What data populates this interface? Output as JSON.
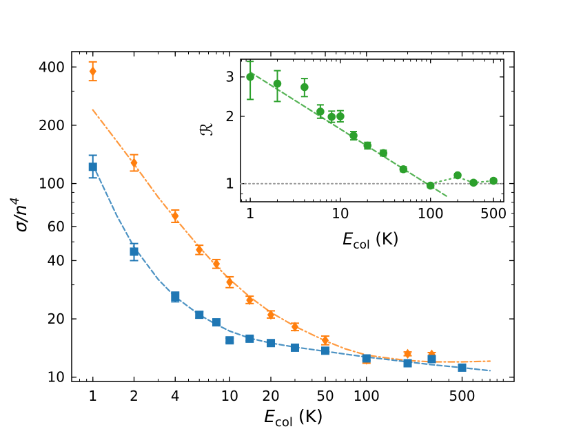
{
  "chart_data": [
    {
      "type": "scatter",
      "xscale": "log",
      "yscale": "log",
      "xlim": [
        0.7,
        1200
      ],
      "ylim": [
        9.5,
        480
      ],
      "xlabel": {
        "main": "E",
        "sub": "col",
        "unit": " (K)"
      },
      "ylabel": {
        "main": "σ/n",
        "sup": "4"
      },
      "xticks": [
        {
          "v": 1,
          "label": "1"
        },
        {
          "v": 2,
          "label": "2"
        },
        {
          "v": 4,
          "label": "4"
        },
        {
          "v": 10,
          "label": "10"
        },
        {
          "v": 20,
          "label": "20"
        },
        {
          "v": 50,
          "label": "50"
        },
        {
          "v": 100,
          "label": "100"
        },
        {
          "v": 500,
          "label": "500"
        }
      ],
      "yticks": [
        {
          "v": 10,
          "label": "10"
        },
        {
          "v": 20,
          "label": "20"
        },
        {
          "v": 40,
          "label": "40"
        },
        {
          "v": 60,
          "label": "60"
        },
        {
          "v": 100,
          "label": "100"
        },
        {
          "v": 200,
          "label": "200"
        },
        {
          "v": 400,
          "label": "400"
        }
      ],
      "series": [
        {
          "name": "orange",
          "color": "#ff7f0e",
          "marker": "diamond",
          "points": [
            {
              "x": 1,
              "y": 380,
              "lo": 340,
              "hi": 425
            },
            {
              "x": 2,
              "y": 128,
              "lo": 116,
              "hi": 141
            },
            {
              "x": 4,
              "y": 68,
              "lo": 63,
              "hi": 73
            },
            {
              "x": 6,
              "y": 45.5,
              "lo": 43,
              "hi": 48
            },
            {
              "x": 8,
              "y": 38.5,
              "lo": 36.5,
              "hi": 40.5
            },
            {
              "x": 10,
              "y": 31,
              "lo": 29,
              "hi": 33
            },
            {
              "x": 14,
              "y": 25,
              "lo": 24,
              "hi": 26.2
            },
            {
              "x": 20,
              "y": 21,
              "lo": 20.2,
              "hi": 22
            },
            {
              "x": 30,
              "y": 18.2,
              "lo": 17.4,
              "hi": 19
            },
            {
              "x": 50,
              "y": 15.5,
              "lo": 14.7,
              "hi": 16.3
            },
            {
              "x": 100,
              "y": 12.3,
              "lo": 11.8,
              "hi": 12.8
            },
            {
              "x": 200,
              "y": 13.2,
              "lo": 12.9,
              "hi": 13.5
            },
            {
              "x": 300,
              "y": 13.1,
              "lo": 12.8,
              "hi": 13.4
            }
          ],
          "fit": {
            "style": "dashdot",
            "points": [
              [
                1,
                240
              ],
              [
                1.5,
                165
              ],
              [
                2,
                126
              ],
              [
                3,
                85
              ],
              [
                4,
                66
              ],
              [
                6,
                47
              ],
              [
                8,
                37.5
              ],
              [
                10,
                32
              ],
              [
                14,
                26
              ],
              [
                20,
                21.6
              ],
              [
                30,
                18.3
              ],
              [
                50,
                15.4
              ],
              [
                70,
                14
              ],
              [
                100,
                13
              ],
              [
                150,
                12.5
              ],
              [
                200,
                12.2
              ],
              [
                300,
                12
              ],
              [
                500,
                12
              ],
              [
                800,
                12.1
              ]
            ]
          }
        },
        {
          "name": "blue",
          "color": "#1f77b4",
          "marker": "square",
          "points": [
            {
              "x": 1,
              "y": 122,
              "lo": 107,
              "hi": 140
            },
            {
              "x": 2,
              "y": 44.5,
              "lo": 40,
              "hi": 49
            },
            {
              "x": 4,
              "y": 26,
              "lo": 24.5,
              "hi": 27.5
            },
            {
              "x": 6,
              "y": 21,
              "lo": 20.2,
              "hi": 21.8
            },
            {
              "x": 8,
              "y": 19.2,
              "lo": 18.6,
              "hi": 19.8
            },
            {
              "x": 10,
              "y": 15.5,
              "lo": 15.1,
              "hi": 15.9
            },
            {
              "x": 14,
              "y": 15.8,
              "lo": 15.4,
              "hi": 16.2
            },
            {
              "x": 20,
              "y": 15,
              "lo": 14.7,
              "hi": 15.3
            },
            {
              "x": 30,
              "y": 14.2,
              "lo": 13.9,
              "hi": 14.5
            },
            {
              "x": 50,
              "y": 13.7,
              "lo": 13.4,
              "hi": 14
            },
            {
              "x": 100,
              "y": 12.5,
              "lo": 12.2,
              "hi": 12.8
            },
            {
              "x": 200,
              "y": 11.8,
              "lo": 11.5,
              "hi": 12.1
            },
            {
              "x": 300,
              "y": 12.4,
              "lo": 12.1,
              "hi": 12.7
            },
            {
              "x": 500,
              "y": 11.2,
              "lo": 10.9,
              "hi": 11.5
            }
          ],
          "fit": {
            "style": "dashed",
            "points": [
              [
                1,
                125
              ],
              [
                1.5,
                68
              ],
              [
                2,
                47
              ],
              [
                3,
                32
              ],
              [
                4,
                26
              ],
              [
                6,
                21
              ],
              [
                8,
                18.7
              ],
              [
                10,
                17.3
              ],
              [
                14,
                15.9
              ],
              [
                20,
                15
              ],
              [
                30,
                14.3
              ],
              [
                50,
                13.6
              ],
              [
                100,
                12.7
              ],
              [
                200,
                12
              ],
              [
                300,
                11.6
              ],
              [
                500,
                11.2
              ],
              [
                800,
                10.8
              ]
            ]
          }
        }
      ]
    },
    {
      "type": "scatter",
      "xscale": "log",
      "yscale": "log",
      "xlim": [
        0.78,
        650
      ],
      "ylim": [
        0.83,
        3.6
      ],
      "xlabel": {
        "main": "E",
        "sub": "col",
        "unit": " (K)"
      },
      "ylabel": {
        "main": "ℛ"
      },
      "xticks": [
        {
          "v": 1,
          "label": "1"
        },
        {
          "v": 10,
          "label": "10"
        },
        {
          "v": 100,
          "label": "100"
        },
        {
          "v": 500,
          "label": "500"
        }
      ],
      "yticks": [
        {
          "v": 1,
          "label": "1"
        },
        {
          "v": 2,
          "label": "2"
        },
        {
          "v": 3,
          "label": "3"
        }
      ],
      "reference_line": {
        "y": 1,
        "color": "#999999",
        "style": "dotted"
      },
      "series": [
        {
          "name": "ratio",
          "color": "#2ca02c",
          "marker": "circle",
          "points": [
            {
              "x": 1,
              "y": 3.0,
              "lo": 2.38,
              "hi": 3.52
            },
            {
              "x": 2,
              "y": 2.8,
              "lo": 2.33,
              "hi": 3.2
            },
            {
              "x": 4,
              "y": 2.7,
              "lo": 2.45,
              "hi": 2.95
            },
            {
              "x": 6,
              "y": 2.1,
              "lo": 1.96,
              "hi": 2.25
            },
            {
              "x": 8,
              "y": 1.99,
              "lo": 1.88,
              "hi": 2.11
            },
            {
              "x": 10,
              "y": 2.0,
              "lo": 1.89,
              "hi": 2.12
            },
            {
              "x": 14,
              "y": 1.64,
              "lo": 1.57,
              "hi": 1.71
            },
            {
              "x": 20,
              "y": 1.48,
              "lo": 1.43,
              "hi": 1.53
            },
            {
              "x": 30,
              "y": 1.37,
              "lo": 1.33,
              "hi": 1.41
            },
            {
              "x": 50,
              "y": 1.16,
              "lo": 1.13,
              "hi": 1.19
            },
            {
              "x": 100,
              "y": 0.98,
              "lo": 0.96,
              "hi": 1.0
            },
            {
              "x": 200,
              "y": 1.09,
              "lo": 1.07,
              "hi": 1.11
            },
            {
              "x": 300,
              "y": 1.01,
              "lo": 0.99,
              "hi": 1.03
            },
            {
              "x": 500,
              "y": 1.03,
              "lo": 1.01,
              "hi": 1.05
            }
          ],
          "fit": {
            "style": "dashed",
            "points": [
              [
                1,
                3.15
              ],
              [
                150,
                0.88
              ]
            ]
          },
          "tail": {
            "style": "dotted",
            "points": [
              [
                100,
                1.0
              ],
              [
                200,
                1.07
              ],
              [
                300,
                1.01
              ],
              [
                500,
                1.03
              ]
            ]
          }
        }
      ]
    }
  ]
}
